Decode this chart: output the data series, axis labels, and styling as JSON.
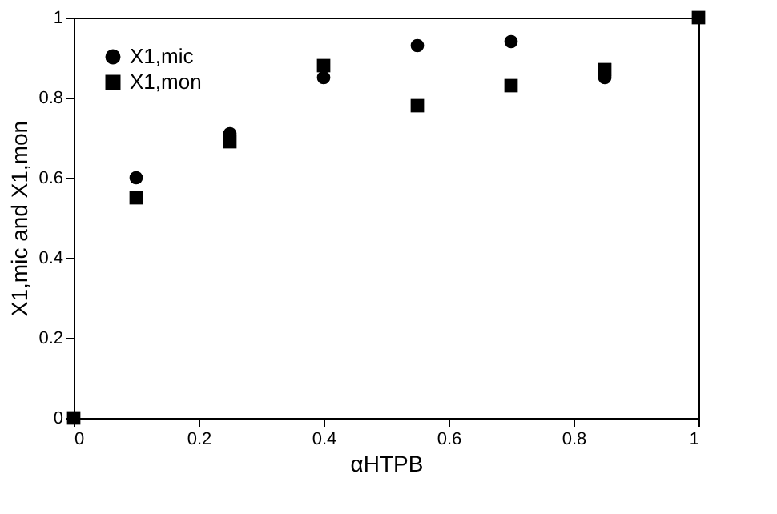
{
  "chart_data": {
    "type": "scatter",
    "xlabel": "αHTPB",
    "ylabel": "X1,mic and X1,mon",
    "x": [
      0,
      0.1,
      0.25,
      0.4,
      0.55,
      0.7,
      0.85,
      1
    ],
    "series": [
      {
        "name": "X1,mic",
        "color": "#000000",
        "marker": "circle",
        "values": [
          null,
          0.6,
          0.71,
          0.85,
          0.93,
          0.94,
          0.85,
          null
        ]
      },
      {
        "name": "X1,mon",
        "color": "#000000",
        "marker": "square",
        "values": [
          0,
          0.55,
          0.69,
          0.88,
          0.78,
          0.83,
          0.87,
          1
        ]
      }
    ],
    "xlim": [
      0,
      1
    ],
    "ylim": [
      0,
      1
    ],
    "xticks": [
      0,
      0.2,
      0.4,
      0.6,
      0.8,
      1
    ],
    "yticks": [
      0,
      0.2,
      0.4,
      0.6,
      0.8,
      1
    ],
    "grid": false,
    "legend": "top left"
  }
}
